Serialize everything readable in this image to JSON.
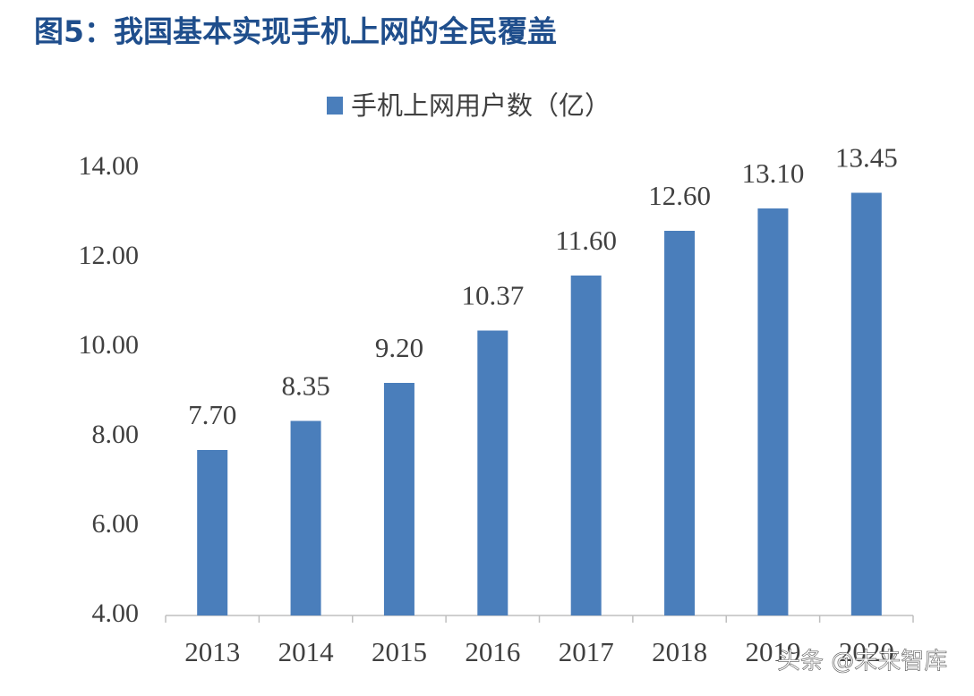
{
  "chart_data": {
    "type": "bar",
    "title": "图5：我国基本实现手机上网的全民覆盖",
    "categories": [
      "2013",
      "2014",
      "2015",
      "2016",
      "2017",
      "2018",
      "2019",
      "2020"
    ],
    "series": [
      {
        "name": "手机上网用户数（亿）",
        "color": "#4a7ebb",
        "values": [
          7.7,
          8.35,
          9.2,
          10.37,
          11.6,
          12.6,
          13.1,
          13.45
        ],
        "value_labels": [
          "7.70",
          "8.35",
          "9.20",
          "10.37",
          "11.60",
          "12.60",
          "13.10",
          "13.45"
        ]
      }
    ],
    "ylim": [
      4,
      14
    ],
    "yticks": [
      {
        "value": 4,
        "label": "4.00"
      },
      {
        "value": 6,
        "label": "6.00"
      },
      {
        "value": 8,
        "label": "8.00"
      },
      {
        "value": 10,
        "label": "10.00"
      },
      {
        "value": 12,
        "label": "12.00"
      },
      {
        "value": 14,
        "label": "14.00"
      }
    ],
    "grid": false,
    "legend": "top",
    "watermark": "头条 @未来智库"
  }
}
